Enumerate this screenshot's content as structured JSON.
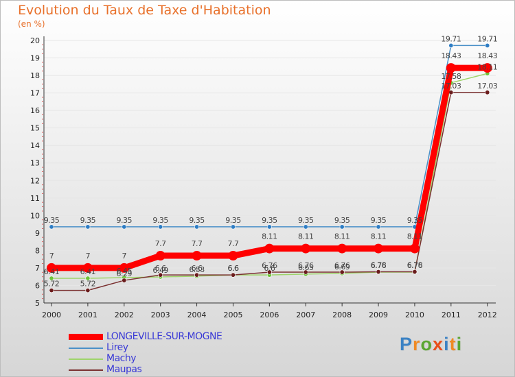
{
  "title": "Evolution du Taux de Taxe d'Habitation",
  "subtitle": "(en %)",
  "brand": {
    "letters": [
      "P",
      "r",
      "o",
      "x",
      "i",
      "t",
      "i"
    ],
    "colors": [
      "#3b82c4",
      "#f08a24",
      "#5aa632",
      "#e94e1b",
      "#3b82c4",
      "#f08a24",
      "#5aa632"
    ]
  },
  "chart_data": {
    "type": "line",
    "title": "Evolution du Taux de Taxe d'Habitation",
    "ylabel": "(en %)",
    "xlabel": "",
    "ylim": [
      5,
      20
    ],
    "yticks": [
      "5",
      "6",
      "7",
      "8",
      "9",
      "10",
      "11",
      "12",
      "13",
      "14",
      "15",
      "16",
      "17",
      "18",
      "19",
      "20"
    ],
    "x": [
      "2000",
      "2001",
      "2002",
      "2003",
      "2004",
      "2005",
      "2006",
      "2007",
      "2008",
      "2009",
      "2010",
      "2011",
      "2012"
    ],
    "legend_position": "bottom-left",
    "series": [
      {
        "name": "Lirey",
        "color": "#4a90c8",
        "marker": "#2e7dc4",
        "values": [
          9.35,
          9.35,
          9.35,
          9.35,
          9.35,
          9.35,
          9.35,
          9.35,
          9.35,
          9.35,
          9.35,
          19.71,
          19.71
        ],
        "labels": [
          "9.35",
          "9.35",
          "9.35",
          "9.35",
          "9.35",
          "9.35",
          "9.35",
          "9.35",
          "9.35",
          "9.35",
          "9.35",
          "19.71",
          "19.71"
        ]
      },
      {
        "name": "Machy",
        "color": "#9ed46a",
        "marker": "#6cc23a",
        "values": [
          6.41,
          6.41,
          6.45,
          6.49,
          6.53,
          6.6,
          6.6,
          6.65,
          6.69,
          6.76,
          6.76,
          17.58,
          18.11
        ],
        "labels": [
          "6.41",
          "6.41",
          "6.45",
          "6.49",
          "6.53",
          "6.6",
          "6.6",
          "6.65",
          "6.69",
          "6.76",
          "6.76",
          "17.58",
          "18.11"
        ]
      },
      {
        "name": "Maupas",
        "color": "#7a3030",
        "marker": "#6a1c1c",
        "values": [
          5.72,
          5.72,
          6.29,
          6.6,
          6.6,
          6.6,
          6.76,
          6.76,
          6.76,
          6.78,
          6.78,
          17.03,
          17.03
        ],
        "labels": [
          "5.72",
          "5.72",
          "6.29",
          "6.6",
          "6.6",
          "6.6",
          "6.76",
          "6.76",
          "6.76",
          "6.78",
          "6.78",
          "17.03",
          "17.03"
        ]
      },
      {
        "name": "LONGEVILLE-SUR-MOGNE",
        "color": "#ff0000",
        "marker": "#ff0000",
        "main": true,
        "values": [
          7,
          7,
          7,
          7.7,
          7.7,
          7.7,
          8.11,
          8.11,
          8.11,
          8.11,
          8.11,
          18.43,
          18.43
        ],
        "labels": [
          "7",
          "7",
          "7",
          "7.7",
          "7.7",
          "7.7",
          "8.11",
          "8.11",
          "8.11",
          "8.11",
          "8.11",
          "18.43",
          "18.43"
        ]
      }
    ],
    "legend_order": [
      "LONGEVILLE-SUR-MOGNE",
      "Lirey",
      "Machy",
      "Maupas"
    ]
  }
}
